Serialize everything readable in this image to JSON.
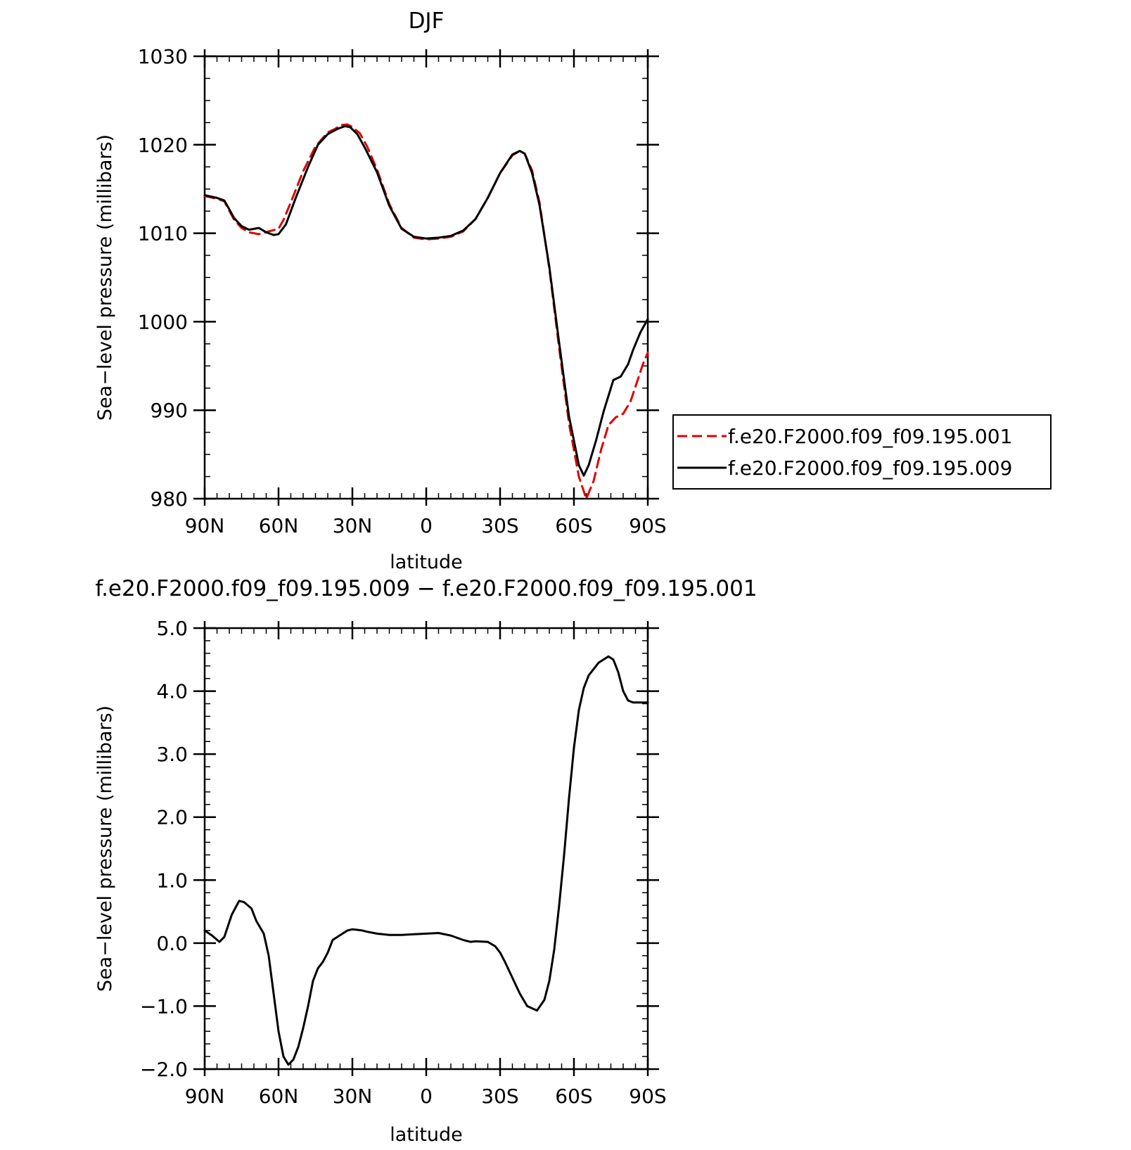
{
  "chart_data": [
    {
      "type": "line",
      "title": "DJF",
      "xlabel": "latitude",
      "ylabel": "Sea−level pressure (millibars)",
      "xlim": [
        90,
        -90
      ],
      "ylim": [
        980,
        1030
      ],
      "x_ticks": [
        {
          "value": 90,
          "label": "90N"
        },
        {
          "value": 60,
          "label": "60N"
        },
        {
          "value": 30,
          "label": "30N"
        },
        {
          "value": 0,
          "label": "0"
        },
        {
          "value": -30,
          "label": "30S"
        },
        {
          "value": -60,
          "label": "60S"
        },
        {
          "value": -90,
          "label": "90S"
        }
      ],
      "y_ticks": [
        {
          "value": 980,
          "label": "980"
        },
        {
          "value": 990,
          "label": "990"
        },
        {
          "value": 1000,
          "label": "1000"
        },
        {
          "value": 1010,
          "label": "1010"
        },
        {
          "value": 1020,
          "label": "1020"
        },
        {
          "value": 1030,
          "label": "1030"
        }
      ],
      "grid": false,
      "legend_position": "right",
      "series": [
        {
          "name": "f.e20.F2000.f09_f09.195.001",
          "color": "#e00000",
          "dash": true,
          "x": [
            90,
            85,
            82,
            78,
            75,
            72,
            68,
            64,
            60,
            58,
            55,
            50,
            45,
            40,
            37,
            35,
            32,
            30,
            27,
            24,
            20,
            15,
            10,
            5,
            0,
            -5,
            -10,
            -15,
            -20,
            -25,
            -30,
            -35,
            -38,
            -40,
            -43,
            -46,
            -50,
            -54,
            -58,
            -62,
            -65,
            -68,
            -71,
            -74,
            -77,
            -80,
            -83,
            -86,
            -88,
            -90
          ],
          "y": [
            1014.2,
            1013.9,
            1013.6,
            1011.5,
            1010.6,
            1010.1,
            1009.9,
            1010.2,
            1010.5,
            1011.5,
            1013.5,
            1017.0,
            1019.8,
            1021.4,
            1021.8,
            1022.2,
            1022.3,
            1022.0,
            1021.3,
            1019.8,
            1017.2,
            1013.3,
            1010.6,
            1009.5,
            1009.3,
            1009.4,
            1009.6,
            1010.2,
            1011.6,
            1014.0,
            1016.8,
            1018.8,
            1019.3,
            1019.0,
            1017.1,
            1013.5,
            1006.0,
            997.0,
            988.5,
            982.5,
            980.0,
            982.0,
            985.5,
            988.3,
            989.2,
            989.6,
            991.0,
            993.5,
            995.2,
            996.5
          ]
        },
        {
          "name": "f.e20.F2000.f09_f09.195.009",
          "color": "#000000",
          "dash": false,
          "x": [
            90,
            85,
            82,
            78,
            75,
            72,
            68,
            65,
            62,
            60,
            57,
            53,
            48,
            44,
            40,
            36,
            33,
            31,
            28,
            25,
            20,
            15,
            10,
            5,
            0,
            -5,
            -10,
            -15,
            -20,
            -25,
            -30,
            -35,
            -38,
            -40,
            -43,
            -46,
            -50,
            -54,
            -58,
            -62,
            -64,
            -66,
            -69,
            -72,
            -76,
            -79,
            -82,
            -84,
            -87,
            -90
          ],
          "y": [
            1014.3,
            1014.0,
            1013.7,
            1011.7,
            1010.8,
            1010.4,
            1010.6,
            1010.1,
            1009.8,
            1009.9,
            1011.0,
            1014.0,
            1017.5,
            1020.0,
            1021.2,
            1021.8,
            1022.1,
            1022.0,
            1021.2,
            1019.7,
            1016.9,
            1013.1,
            1010.5,
            1009.6,
            1009.4,
            1009.5,
            1009.7,
            1010.3,
            1011.6,
            1014.0,
            1016.8,
            1018.9,
            1019.3,
            1019.0,
            1016.8,
            1013.2,
            1006.2,
            997.6,
            989.3,
            983.8,
            982.6,
            983.8,
            986.6,
            989.8,
            993.4,
            993.8,
            995.2,
            996.8,
            998.8,
            1000.3
          ]
        }
      ]
    },
    {
      "type": "line",
      "title": "f.e20.F2000.f09_f09.195.009 − f.e20.F2000.f09_f09.195.001",
      "xlabel": "latitude",
      "ylabel": "Sea−level pressure (millibars)",
      "xlim": [
        90,
        -90
      ],
      "ylim": [
        -2.0,
        5.0
      ],
      "x_ticks": [
        {
          "value": 90,
          "label": "90N"
        },
        {
          "value": 60,
          "label": "60N"
        },
        {
          "value": 30,
          "label": "30N"
        },
        {
          "value": 0,
          "label": "0"
        },
        {
          "value": -30,
          "label": "30S"
        },
        {
          "value": -60,
          "label": "60S"
        },
        {
          "value": -90,
          "label": "90S"
        }
      ],
      "y_ticks": [
        {
          "value": -2.0,
          "label": "−2.0"
        },
        {
          "value": -1.0,
          "label": "−1.0"
        },
        {
          "value": 0.0,
          "label": "0.0"
        },
        {
          "value": 1.0,
          "label": "1.0"
        },
        {
          "value": 2.0,
          "label": "2.0"
        },
        {
          "value": 3.0,
          "label": "3.0"
        },
        {
          "value": 4.0,
          "label": "4.0"
        },
        {
          "value": 5.0,
          "label": "5.0"
        }
      ],
      "grid": false,
      "series": [
        {
          "color": "#000000",
          "dash": false,
          "x": [
            90,
            87,
            84,
            82,
            79,
            76,
            74,
            71,
            69,
            66,
            64,
            62,
            60,
            58,
            56,
            54,
            52,
            51,
            50,
            48,
            46,
            44,
            42,
            40,
            38,
            36,
            34,
            32,
            30,
            28,
            26,
            24,
            20,
            15,
            10,
            5,
            0,
            -5,
            -10,
            -15,
            -18,
            -20,
            -25,
            -28,
            -30,
            -32,
            -35,
            -38,
            -41,
            -45,
            -48,
            -50,
            -52,
            -54,
            -56,
            -58,
            -60,
            -62,
            -64,
            -66,
            -68,
            -70,
            -72,
            -74,
            -76,
            -78,
            -80,
            -82,
            -84,
            -86,
            -88,
            -90
          ],
          "y": [
            0.2,
            0.12,
            0.02,
            0.1,
            0.45,
            0.67,
            0.65,
            0.55,
            0.35,
            0.15,
            -0.2,
            -0.8,
            -1.4,
            -1.8,
            -1.93,
            -1.85,
            -1.65,
            -1.5,
            -1.35,
            -1.0,
            -0.6,
            -0.4,
            -0.3,
            -0.15,
            0.05,
            0.1,
            0.15,
            0.2,
            0.22,
            0.21,
            0.2,
            0.18,
            0.15,
            0.13,
            0.13,
            0.14,
            0.15,
            0.16,
            0.12,
            0.05,
            0.02,
            0.03,
            0.02,
            -0.05,
            -0.15,
            -0.3,
            -0.55,
            -0.8,
            -1.0,
            -1.07,
            -0.9,
            -0.6,
            -0.1,
            0.6,
            1.4,
            2.3,
            3.1,
            3.7,
            4.05,
            4.25,
            4.35,
            4.45,
            4.5,
            4.55,
            4.5,
            4.3,
            4.0,
            3.85,
            3.82,
            3.82,
            3.82,
            3.82
          ]
        }
      ]
    }
  ]
}
